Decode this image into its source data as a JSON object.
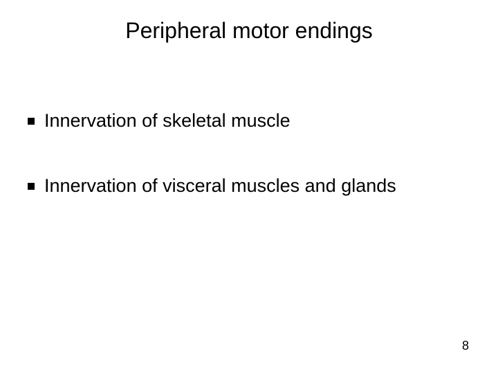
{
  "slide": {
    "title": "Peripheral motor endings",
    "bullets": [
      {
        "text": "Innervation of skeletal muscle"
      },
      {
        "text": "Innervation of visceral muscles and glands"
      }
    ],
    "page_number": "8"
  },
  "style": {
    "background_color": "#ffffff",
    "text_color": "#000000",
    "title_fontsize": 32,
    "bullet_fontsize": 27,
    "pagenum_fontsize": 18,
    "bullet_marker": "square",
    "bullet_marker_color": "#000000",
    "font_family": "Arial"
  }
}
